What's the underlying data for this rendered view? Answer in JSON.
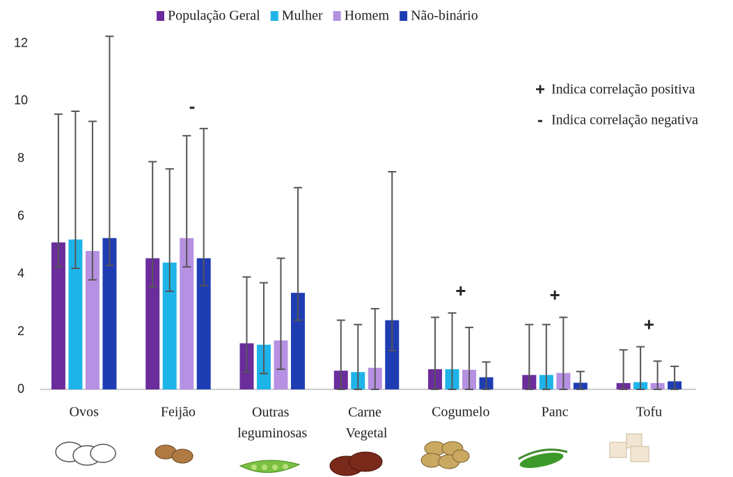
{
  "chart_data": {
    "type": "bar",
    "categories": [
      "Ovos",
      "Feijão",
      "Outras leguminosas",
      "Carne Vegetal",
      "Cogumelo",
      "Panc",
      "Tofu"
    ],
    "series": [
      {
        "name": "População Geral",
        "color": "#6b2c9c",
        "values": [
          5.1,
          4.55,
          1.6,
          0.65,
          0.7,
          0.5,
          0.22
        ],
        "errors_plus": [
          4.45,
          3.35,
          2.3,
          1.75,
          1.8,
          1.75,
          1.15
        ],
        "errors_minus": [
          0.85,
          1.0,
          1.0,
          0.65,
          0.7,
          0.5,
          0.22
        ]
      },
      {
        "name": "Mulher",
        "color": "#1eb4e9",
        "values": [
          5.2,
          4.4,
          1.55,
          0.6,
          0.7,
          0.5,
          0.25
        ],
        "errors_plus": [
          4.45,
          3.25,
          2.15,
          1.65,
          1.95,
          1.75,
          1.23
        ],
        "errors_minus": [
          1.0,
          1.0,
          1.0,
          0.6,
          0.7,
          0.5,
          0.25
        ]
      },
      {
        "name": "Homem",
        "color": "#b690e2",
        "values": [
          4.8,
          5.25,
          1.7,
          0.75,
          0.68,
          0.57,
          0.22
        ],
        "errors_plus": [
          4.5,
          3.55,
          2.85,
          2.05,
          1.47,
          1.93,
          0.76
        ],
        "errors_minus": [
          1.0,
          1.0,
          1.0,
          0.75,
          0.68,
          0.57,
          0.22
        ]
      },
      {
        "name": "Não-binário",
        "color": "#1f3db3",
        "values": [
          5.25,
          4.55,
          3.35,
          2.4,
          0.42,
          0.23,
          0.28
        ],
        "errors_plus": [
          7.0,
          4.5,
          3.65,
          5.15,
          0.53,
          0.39,
          0.52
        ],
        "errors_minus": [
          0.95,
          0.95,
          0.95,
          1.05,
          0.42,
          0.23,
          0.28
        ]
      }
    ],
    "category_markers": [
      null,
      "-",
      null,
      null,
      "+",
      "+",
      "+"
    ],
    "notes": [
      {
        "symbol": "+",
        "color": "#22b14c",
        "label": "Indica correlação positiva"
      },
      {
        "symbol": "-",
        "color": "#e53935",
        "label": "Indica correlação negativa"
      }
    ],
    "ylim": [
      0,
      12.4
    ],
    "yticks": [
      0,
      2,
      4,
      6,
      8,
      10,
      12
    ],
    "grid": false,
    "legend": "top"
  }
}
